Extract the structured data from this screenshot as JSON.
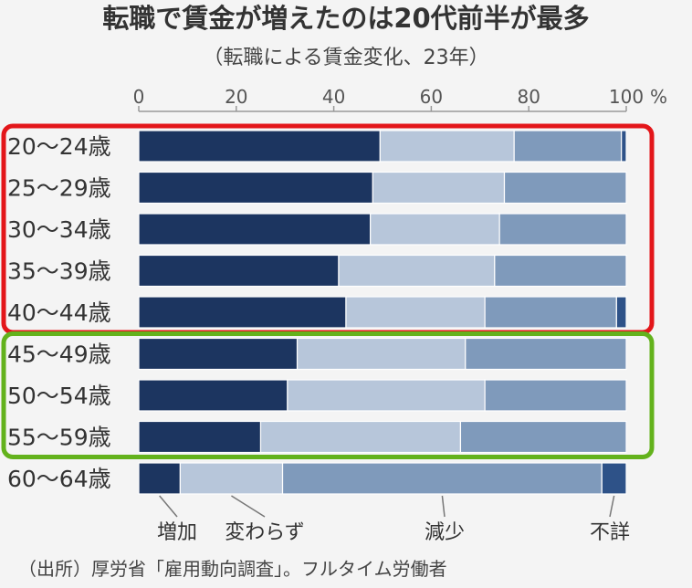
{
  "chart_data": {
    "type": "bar",
    "stacked": true,
    "orientation": "horizontal",
    "title": "転職で賃金が増えたのは20代前半が最多",
    "subtitle": "（転職による賃金変化、23年）",
    "unit": "%",
    "xlim": [
      0,
      100
    ],
    "ticks": [
      "0",
      "20",
      "40",
      "60",
      "80",
      "100"
    ],
    "categories": [
      "20〜24歳",
      "25〜29歳",
      "30〜34歳",
      "35〜39歳",
      "40〜44歳",
      "45〜49歳",
      "50〜54歳",
      "55〜59歳",
      "60〜64歳"
    ],
    "series": [
      {
        "name": "増加",
        "color": "#1c3560",
        "values": [
          49.5,
          48,
          47.5,
          41,
          42.5,
          32.5,
          30.5,
          25,
          8.5
        ]
      },
      {
        "name": "変わらず",
        "color": "#b7c6da",
        "values": [
          27.5,
          27,
          26.5,
          32,
          28.5,
          34.5,
          40.5,
          41,
          21
        ]
      },
      {
        "name": "減少",
        "color": "#7f9abb",
        "values": [
          22,
          25,
          26,
          27,
          27,
          33,
          29,
          34,
          65.5
        ]
      },
      {
        "name": "不詳",
        "color": "#2e5288",
        "values": [
          1,
          0,
          0,
          0,
          2,
          0,
          0,
          0,
          5
        ]
      }
    ],
    "highlight_groups": [
      {
        "color": "#e3161a",
        "from": 0,
        "to": 4
      },
      {
        "color": "#63b21c",
        "from": 5,
        "to": 7
      }
    ],
    "legend_position": "bottom",
    "grid": false,
    "source": "（出所）厚労省「雇用動向調査」。フルタイム労働者"
  }
}
